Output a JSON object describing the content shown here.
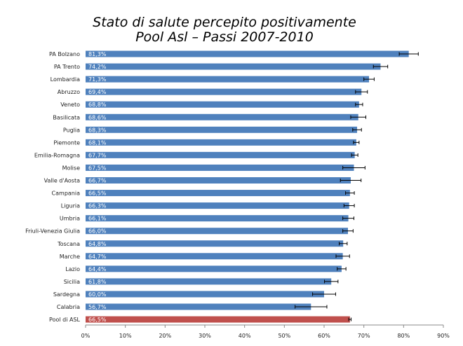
{
  "chart_data": {
    "type": "bar",
    "orientation": "horizontal",
    "title": "Stato di salute percepito positivamente",
    "subtitle": "Pool Asl – Passi 2007-2010",
    "categories": [
      "PA Bolzano",
      "PA Trento",
      "Lombardia",
      "Abruzzo",
      "Veneto",
      "Basilicata",
      "Puglia",
      "Piemonte",
      "Emilia-Romagna",
      "Molise",
      "Valle d'Aosta",
      "Campania",
      "Liguria",
      "Umbria",
      "Friuli-Venezia Giulia",
      "Toscana",
      "Marche",
      "Lazio",
      "Sicilia",
      "Sardegna",
      "Calabria",
      "Pool di ASL"
    ],
    "values": [
      81.3,
      74.2,
      71.3,
      69.4,
      68.8,
      68.6,
      68.3,
      68.1,
      67.7,
      67.5,
      66.7,
      66.5,
      66.3,
      66.1,
      66.0,
      64.8,
      64.7,
      64.4,
      61.8,
      60.0,
      56.7,
      66.5
    ],
    "value_labels": [
      "81,3%",
      "74,2%",
      "71,3%",
      "69,4%",
      "68,8%",
      "68,6%",
      "68,3%",
      "68,1%",
      "67,7%",
      "67,5%",
      "66,7%",
      "66,5%",
      "66,3%",
      "66,1%",
      "66,0%",
      "64,8%",
      "64,7%",
      "64,4%",
      "61,8%",
      "60,0%",
      "56,7%",
      "66,5%"
    ],
    "ci_halfwidth": [
      2.4,
      1.8,
      1.3,
      1.5,
      0.9,
      1.9,
      1.1,
      0.7,
      0.8,
      2.8,
      2.6,
      1.1,
      1.3,
      1.4,
      1.3,
      1.0,
      1.7,
      1.1,
      1.7,
      2.9,
      4.0,
      0.3
    ],
    "xlim": [
      0,
      90
    ],
    "xticks": [
      "0%",
      "10%",
      "20%",
      "30%",
      "40%",
      "50%",
      "60%",
      "70%",
      "80%",
      "90%"
    ],
    "colors": {
      "region": "#4f81bd",
      "pool": "#c0504d"
    },
    "xlabel": "",
    "ylabel": "",
    "grid": false
  }
}
